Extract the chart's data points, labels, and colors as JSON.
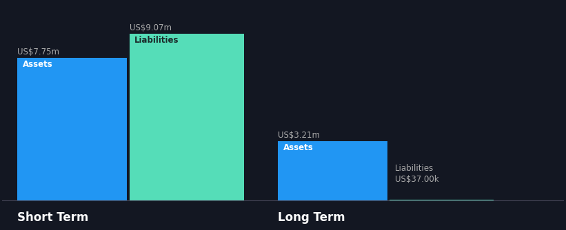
{
  "background_color": "#131722",
  "short_term": {
    "assets_value": 7.75,
    "liabilities_value": 9.07,
    "assets_label": "US$7.75m",
    "liabilities_label": "US$9.07m",
    "assets_color": "#2196F3",
    "liabilities_color": "#55DDB8",
    "assets_text": "Assets",
    "liabilities_text": "Liabilities",
    "group_label": "Short Term"
  },
  "long_term": {
    "assets_value": 3.21,
    "liabilities_value": 0.037,
    "assets_label": "US$3.21m",
    "liabilities_label": "US$37.00k",
    "assets_color": "#2196F3",
    "liabilities_color": "#55DDB8",
    "assets_text": "Assets",
    "liabilities_text": "Liabilities",
    "group_label": "Long Term"
  },
  "text_color": "#ffffff",
  "label_color": "#aaaaaa",
  "font_size_value": 8.5,
  "font_size_inside": 8.5,
  "font_size_group": 12,
  "divider_color": "#444455",
  "max_val": 9.07
}
